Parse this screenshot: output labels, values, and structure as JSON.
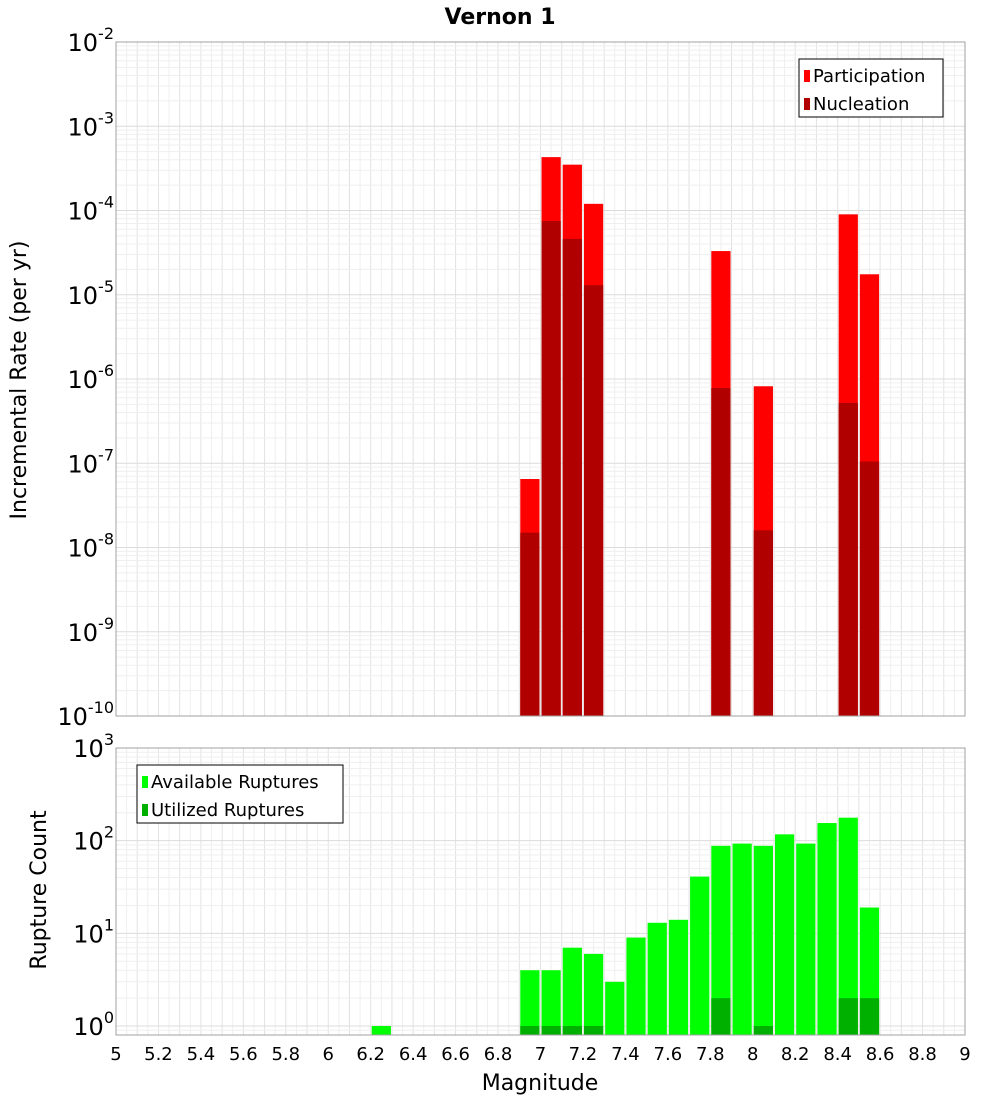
{
  "chart_data": [
    {
      "type": "bar",
      "title": "Vernon 1",
      "xlabel": "",
      "ylabel": "Incremental Rate (per yr)",
      "yscale": "log",
      "ylim": [
        1e-10,
        0.01
      ],
      "xlim": [
        5,
        9
      ],
      "grid": true,
      "legend_position": "top-right",
      "y_ticks": [
        {
          "base": "10",
          "exp": "-10",
          "value": 1e-10
        },
        {
          "base": "10",
          "exp": "-9",
          "value": 1e-09
        },
        {
          "base": "10",
          "exp": "-8",
          "value": 1e-08
        },
        {
          "base": "10",
          "exp": "-7",
          "value": 1e-07
        },
        {
          "base": "10",
          "exp": "-6",
          "value": 1e-06
        },
        {
          "base": "10",
          "exp": "-5",
          "value": 1e-05
        },
        {
          "base": "10",
          "exp": "-4",
          "value": 0.0001
        },
        {
          "base": "10",
          "exp": "-3",
          "value": 0.001
        },
        {
          "base": "10",
          "exp": "-2",
          "value": 0.01
        }
      ],
      "bar_width": 0.1,
      "series": [
        {
          "name": "Participation",
          "color": "#ff0000",
          "points": [
            {
              "x": 6.95,
              "y": 6.5e-08
            },
            {
              "x": 7.05,
              "y": 0.00043
            },
            {
              "x": 7.15,
              "y": 0.00035
            },
            {
              "x": 7.25,
              "y": 0.00012
            },
            {
              "x": 7.85,
              "y": 3.3e-05
            },
            {
              "x": 8.05,
              "y": 8.2e-07
            },
            {
              "x": 8.45,
              "y": 9e-05
            },
            {
              "x": 8.55,
              "y": 1.75e-05
            }
          ]
        },
        {
          "name": "Nucleation",
          "color": "#b00000",
          "points": [
            {
              "x": 6.95,
              "y": 1.5e-08
            },
            {
              "x": 7.05,
              "y": 7.5e-05
            },
            {
              "x": 7.15,
              "y": 4.6e-05
            },
            {
              "x": 7.25,
              "y": 1.3e-05
            },
            {
              "x": 7.85,
              "y": 7.8e-07
            },
            {
              "x": 8.05,
              "y": 1.6e-08
            },
            {
              "x": 8.45,
              "y": 5.2e-07
            },
            {
              "x": 8.55,
              "y": 1.05e-07
            }
          ]
        }
      ]
    },
    {
      "type": "bar",
      "title": "",
      "xlabel": "Magnitude",
      "ylabel": "Rupture Count",
      "yscale": "log",
      "ylim": [
        0.8,
        1000
      ],
      "xlim": [
        5,
        9
      ],
      "grid": true,
      "legend_position": "top-left",
      "x_ticks": [
        "5",
        "5.2",
        "5.4",
        "5.6",
        "5.8",
        "6",
        "6.2",
        "6.4",
        "6.6",
        "6.8",
        "7",
        "7.2",
        "7.4",
        "7.6",
        "7.8",
        "8",
        "8.2",
        "8.4",
        "8.6",
        "8.8",
        "9"
      ],
      "y_ticks": [
        {
          "base": "10",
          "exp": "0",
          "value": 1
        },
        {
          "base": "10",
          "exp": "1",
          "value": 10
        },
        {
          "base": "10",
          "exp": "2",
          "value": 100
        },
        {
          "base": "10",
          "exp": "3",
          "value": 1000
        }
      ],
      "bar_width": 0.1,
      "series": [
        {
          "name": "Available Ruptures",
          "color": "#00ff00",
          "points": [
            {
              "x": 6.25,
              "y": 1
            },
            {
              "x": 6.95,
              "y": 4
            },
            {
              "x": 7.05,
              "y": 4
            },
            {
              "x": 7.15,
              "y": 7
            },
            {
              "x": 7.25,
              "y": 6
            },
            {
              "x": 7.35,
              "y": 3
            },
            {
              "x": 7.45,
              "y": 9
            },
            {
              "x": 7.55,
              "y": 13
            },
            {
              "x": 7.65,
              "y": 14
            },
            {
              "x": 7.75,
              "y": 41
            },
            {
              "x": 7.85,
              "y": 88
            },
            {
              "x": 7.95,
              "y": 93
            },
            {
              "x": 8.05,
              "y": 88
            },
            {
              "x": 8.15,
              "y": 117
            },
            {
              "x": 8.25,
              "y": 93
            },
            {
              "x": 8.35,
              "y": 155
            },
            {
              "x": 8.45,
              "y": 177
            },
            {
              "x": 8.55,
              "y": 19
            }
          ]
        },
        {
          "name": "Utilized Ruptures",
          "color": "#00b000",
          "points": [
            {
              "x": 6.95,
              "y": 1
            },
            {
              "x": 7.05,
              "y": 1
            },
            {
              "x": 7.15,
              "y": 1
            },
            {
              "x": 7.25,
              "y": 1
            },
            {
              "x": 7.85,
              "y": 2
            },
            {
              "x": 8.05,
              "y": 1
            },
            {
              "x": 8.45,
              "y": 2
            },
            {
              "x": 8.55,
              "y": 2
            }
          ]
        }
      ]
    }
  ]
}
